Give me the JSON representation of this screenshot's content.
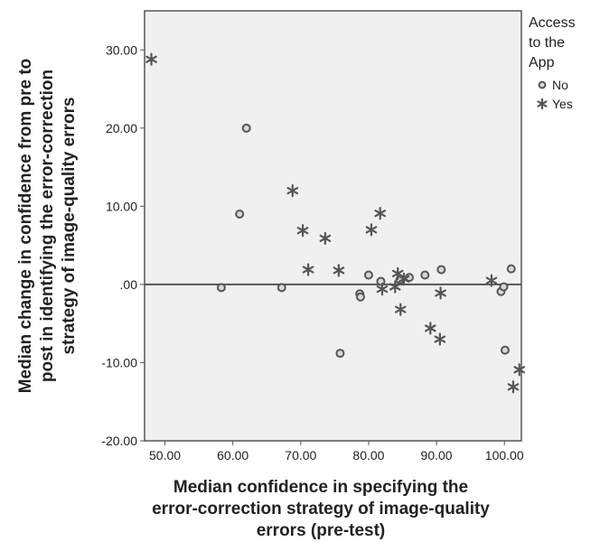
{
  "chart_data": {
    "type": "scatter",
    "title": "",
    "xlabel_lines": [
      "Median confidence in specifying the",
      "error-correction strategy of image-quality",
      "errors (pre-test)"
    ],
    "ylabel_lines": [
      "Median change in confidence from pre to",
      "post in identifying the error-correction",
      "strategy of image-quality errors"
    ],
    "xlim": [
      47,
      102.5
    ],
    "ylim": [
      -20,
      35
    ],
    "x_ticks": [
      50,
      60,
      70,
      80,
      90,
      100
    ],
    "x_tick_labels": [
      "50.00",
      "60.00",
      "70.00",
      "80.00",
      "90.00",
      "100.00"
    ],
    "y_ticks": [
      30,
      20,
      10,
      0,
      -10,
      -20
    ],
    "y_tick_labels": [
      "30.00",
      "20.00",
      "10.00",
      ".00",
      "-10.00",
      "-20.00"
    ],
    "reference_line_y": 0,
    "grid": false,
    "legend": {
      "title_lines": [
        "Access",
        "to the",
        "App"
      ],
      "placement": "right"
    },
    "series": [
      {
        "name": "No",
        "marker": "circle",
        "color": "#555555",
        "points": [
          [
            58.3,
            -0.4
          ],
          [
            61.0,
            9.0
          ],
          [
            62.0,
            20.0
          ],
          [
            67.2,
            -0.4
          ],
          [
            75.8,
            -8.8
          ],
          [
            78.7,
            -1.2
          ],
          [
            78.8,
            -1.6
          ],
          [
            80.0,
            1.2
          ],
          [
            81.8,
            0.4
          ],
          [
            84.6,
            0.6
          ],
          [
            86.0,
            0.9
          ],
          [
            88.3,
            1.2
          ],
          [
            90.7,
            1.9
          ],
          [
            99.5,
            -0.9
          ],
          [
            99.9,
            -0.3
          ],
          [
            100.1,
            -8.4
          ],
          [
            101.0,
            2.0
          ]
        ]
      },
      {
        "name": "Yes",
        "marker": "star",
        "color": "#555555",
        "points": [
          [
            48.0,
            28.8
          ],
          [
            68.8,
            12.0
          ],
          [
            70.3,
            6.9
          ],
          [
            71.1,
            1.9
          ],
          [
            73.6,
            5.9
          ],
          [
            75.6,
            1.8
          ],
          [
            80.4,
            7.0
          ],
          [
            81.7,
            9.1
          ],
          [
            82.0,
            -0.6
          ],
          [
            83.9,
            -0.3
          ],
          [
            84.3,
            1.4
          ],
          [
            84.7,
            -3.2
          ],
          [
            85.2,
            0.7
          ],
          [
            89.1,
            -5.6
          ],
          [
            90.5,
            -7.0
          ],
          [
            90.6,
            -1.1
          ],
          [
            98.1,
            0.5
          ],
          [
            101.3,
            -13.1
          ],
          [
            102.2,
            -10.9
          ]
        ]
      }
    ]
  }
}
